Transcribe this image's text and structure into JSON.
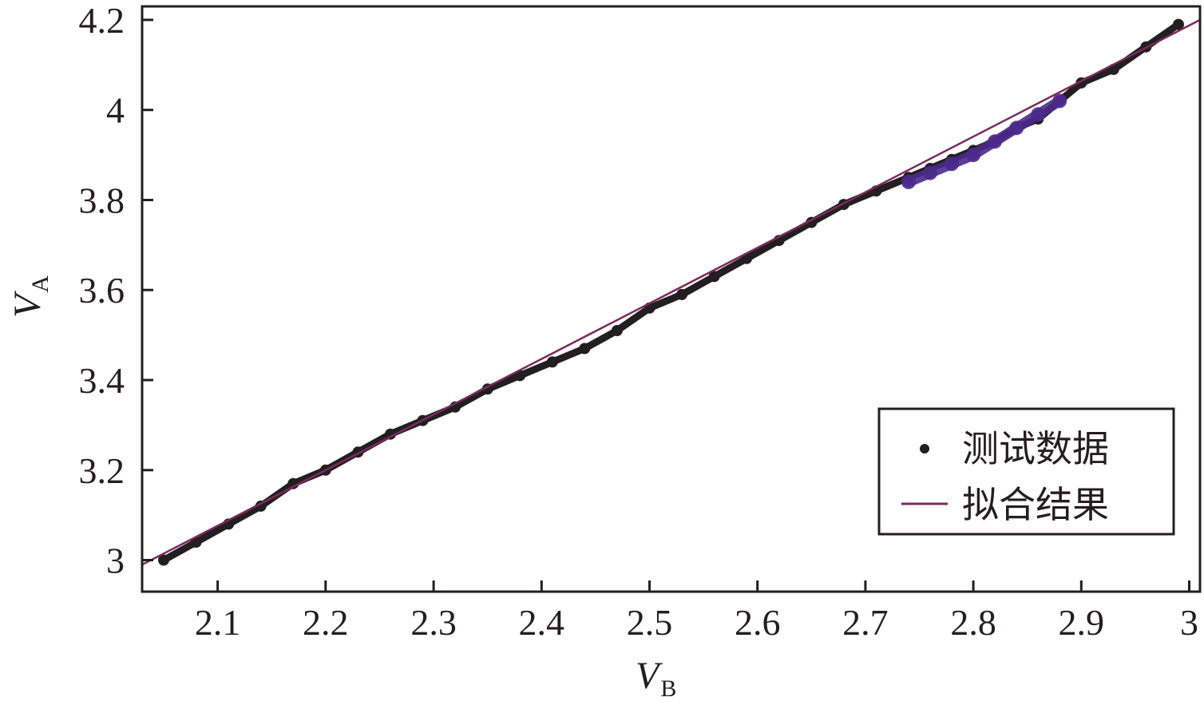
{
  "chart_data": {
    "type": "scatter",
    "xlabel": "V",
    "xlabel_sub": "B",
    "ylabel": "V",
    "ylabel_sub": "A",
    "xlim": [
      2.03,
      3.01
    ],
    "ylim": [
      2.93,
      4.23
    ],
    "x_ticks": [
      2.1,
      2.2,
      2.3,
      2.4,
      2.5,
      2.6,
      2.7,
      2.8,
      2.9,
      3.0
    ],
    "x_tick_labels": [
      "2.1",
      "2.2",
      "2.3",
      "2.4",
      "2.5",
      "2.6",
      "2.7",
      "2.8",
      "2.9",
      "3"
    ],
    "y_ticks": [
      3.0,
      3.2,
      3.4,
      3.6,
      3.8,
      4.0,
      4.2
    ],
    "y_tick_labels": [
      "3",
      "3.2",
      "3.4",
      "3.6",
      "3.8",
      "4",
      "4.2"
    ],
    "grid": false,
    "legend_position": "bottom-right",
    "series": [
      {
        "name": "测试数据",
        "kind": "scatter",
        "color": "#231f20",
        "highlight_color": "#4b2a8c",
        "x": [
          2.05,
          2.08,
          2.11,
          2.14,
          2.17,
          2.2,
          2.23,
          2.26,
          2.29,
          2.32,
          2.35,
          2.38,
          2.41,
          2.44,
          2.47,
          2.5,
          2.53,
          2.56,
          2.59,
          2.62,
          2.65,
          2.68,
          2.71,
          2.74,
          2.76,
          2.78,
          2.8,
          2.82,
          2.84,
          2.86,
          2.88,
          2.9,
          2.93,
          2.96,
          2.99
        ],
        "y": [
          3.0,
          3.04,
          3.08,
          3.12,
          3.17,
          3.2,
          3.24,
          3.28,
          3.31,
          3.34,
          3.38,
          3.41,
          3.44,
          3.47,
          3.51,
          3.56,
          3.59,
          3.63,
          3.67,
          3.71,
          3.75,
          3.79,
          3.82,
          3.85,
          3.87,
          3.89,
          3.91,
          3.93,
          3.96,
          3.98,
          4.02,
          4.06,
          4.09,
          4.14,
          4.19
        ]
      },
      {
        "name": "测试数据",
        "kind": "scatter-secondary",
        "color": "#4b2a8c",
        "x": [
          2.74,
          2.76,
          2.78,
          2.8,
          2.82,
          2.84,
          2.86,
          2.88
        ],
        "y": [
          3.84,
          3.86,
          3.88,
          3.9,
          3.93,
          3.96,
          3.99,
          4.02
        ]
      },
      {
        "name": "拟合结果",
        "kind": "line",
        "color": "#7b2a5e",
        "x": [
          2.03,
          3.01
        ],
        "y": [
          2.99,
          4.2
        ]
      }
    ],
    "legend": [
      {
        "label": "测试数据",
        "marker": "dot",
        "color": "#231f20"
      },
      {
        "label": "拟合结果",
        "marker": "line",
        "color": "#7b2a5e"
      }
    ]
  }
}
